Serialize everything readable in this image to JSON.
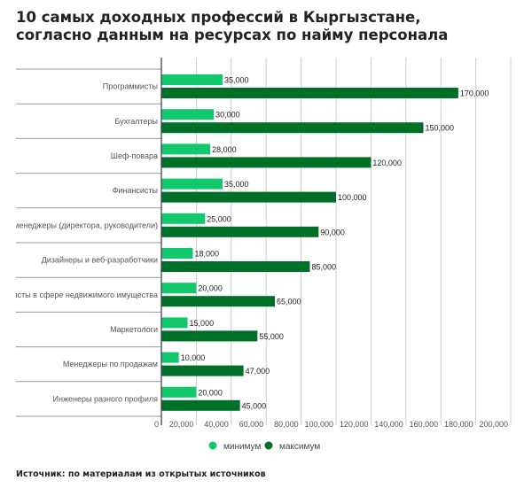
{
  "chart_data": {
    "type": "bar",
    "orientation": "horizontal",
    "title_lines": [
      "10 самых доходных профессий в Кыргызстане,",
      "согласно данным на ресурсах по найму персонала"
    ],
    "categories": [
      "Программисты",
      "Бухгалтеры",
      "Шеф-повара",
      "Финансисты",
      "Топ-менеджеры (директора, руководители)",
      "Дизайнеры и веб-разработчики",
      "Специалисты в сфере недвижимого имущества",
      "Маркетологи",
      "Менеджеры по продажам",
      "Инженеры разного профиля"
    ],
    "series": [
      {
        "name": "минимум",
        "color": "#12c86c",
        "values": [
          35000,
          30000,
          28000,
          35000,
          25000,
          18000,
          20000,
          15000,
          10000,
          20000
        ]
      },
      {
        "name": "максимум",
        "color": "#006f28",
        "values": [
          170000,
          150000,
          120000,
          100000,
          90000,
          85000,
          65000,
          55000,
          47000,
          45000
        ]
      }
    ],
    "xlim": [
      0,
      200000
    ],
    "xticks": [
      "0",
      "20,000",
      "40,000",
      "60,000",
      "80,000",
      "100,000",
      "120,000",
      "140,000",
      "160,000",
      "180,000",
      "200,000"
    ],
    "xtick_values": [
      0,
      20000,
      40000,
      60000,
      80000,
      100000,
      120000,
      140000,
      160000,
      180000,
      200000
    ],
    "grid": true,
    "legend_position": "bottom"
  },
  "source": "Источник: по материалам из открытых источников"
}
